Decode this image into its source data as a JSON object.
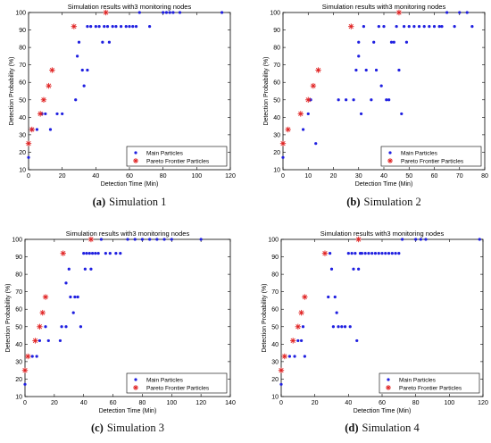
{
  "legend": {
    "main": "Main Particles",
    "pareto": "Pareto Frontier Particles"
  },
  "chart_data": [
    {
      "type": "scatter",
      "title": "Simulation results with3 monitoring nodes",
      "xlabel": "Detection Time (Min)",
      "ylabel": "Detection Probability (%)",
      "caption_label": "(a)",
      "caption_text": "Simulation 1",
      "xlim": [
        0,
        120
      ],
      "ylim": [
        10,
        100
      ],
      "xticks": [
        0,
        20,
        40,
        60,
        80,
        100,
        120
      ],
      "yticks": [
        10,
        20,
        30,
        40,
        50,
        60,
        70,
        80,
        90,
        100
      ],
      "grid": false,
      "legend_position": "bottom-right",
      "series": [
        {
          "name": "Main Particles",
          "marker": "dot",
          "color": "#1f1fe0",
          "points": [
            [
              0,
              17
            ],
            [
              2,
              33
            ],
            [
              5,
              33
            ],
            [
              8,
              42
            ],
            [
              10,
              42
            ],
            [
              13,
              33
            ],
            [
              17,
              42
            ],
            [
              20,
              42
            ],
            [
              28,
              50
            ],
            [
              29,
              75
            ],
            [
              30,
              83
            ],
            [
              32,
              67
            ],
            [
              33,
              58
            ],
            [
              35,
              92
            ],
            [
              35,
              67
            ],
            [
              37,
              92
            ],
            [
              40,
              92
            ],
            [
              42,
              92
            ],
            [
              44,
              83
            ],
            [
              45,
              92
            ],
            [
              47,
              92
            ],
            [
              48,
              83
            ],
            [
              50,
              92
            ],
            [
              52,
              92
            ],
            [
              55,
              92
            ],
            [
              58,
              92
            ],
            [
              60,
              92
            ],
            [
              62,
              92
            ],
            [
              64,
              92
            ],
            [
              66,
              100
            ],
            [
              72,
              92
            ],
            [
              80,
              100
            ],
            [
              82,
              100
            ],
            [
              84,
              100
            ],
            [
              86,
              100
            ],
            [
              90,
              100
            ],
            [
              115,
              100
            ]
          ]
        },
        {
          "name": "Pareto Frontier Particles",
          "marker": "asterisk",
          "color": "#e02020",
          "points": [
            [
              0,
              25
            ],
            [
              2,
              33
            ],
            [
              7,
              42
            ],
            [
              9,
              50
            ],
            [
              12,
              58
            ],
            [
              14,
              67
            ],
            [
              27,
              92
            ],
            [
              46,
              100
            ]
          ]
        }
      ]
    },
    {
      "type": "scatter",
      "title": "Simulation results with3 monitoring nodes",
      "xlabel": "Detection Time (Min)",
      "ylabel": "Detection Probability (%)",
      "caption_label": "(b)",
      "caption_text": "Simulation 2",
      "xlim": [
        0,
        80
      ],
      "ylim": [
        10,
        100
      ],
      "xticks": [
        0,
        10,
        20,
        30,
        40,
        50,
        60,
        70,
        80
      ],
      "yticks": [
        10,
        20,
        30,
        40,
        50,
        60,
        70,
        80,
        90,
        100
      ],
      "grid": false,
      "legend_position": "bottom-right",
      "series": [
        {
          "name": "Main Particles",
          "marker": "dot",
          "color": "#1f1fe0",
          "points": [
            [
              0,
              17
            ],
            [
              8,
              33
            ],
            [
              10,
              42
            ],
            [
              11,
              50
            ],
            [
              13,
              25
            ],
            [
              22,
              50
            ],
            [
              25,
              50
            ],
            [
              28,
              50
            ],
            [
              29,
              67
            ],
            [
              30,
              75
            ],
            [
              30,
              83
            ],
            [
              31,
              42
            ],
            [
              32,
              92
            ],
            [
              33,
              67
            ],
            [
              35,
              50
            ],
            [
              36,
              83
            ],
            [
              37,
              67
            ],
            [
              38,
              92
            ],
            [
              39,
              58
            ],
            [
              40,
              92
            ],
            [
              41,
              50
            ],
            [
              42,
              50
            ],
            [
              43,
              83
            ],
            [
              44,
              83
            ],
            [
              45,
              92
            ],
            [
              46,
              67
            ],
            [
              47,
              42
            ],
            [
              48,
              92
            ],
            [
              49,
              83
            ],
            [
              50,
              92
            ],
            [
              52,
              92
            ],
            [
              54,
              92
            ],
            [
              56,
              92
            ],
            [
              58,
              92
            ],
            [
              60,
              92
            ],
            [
              62,
              92
            ],
            [
              63,
              92
            ],
            [
              65,
              100
            ],
            [
              68,
              92
            ],
            [
              70,
              100
            ],
            [
              73,
              100
            ],
            [
              75,
              92
            ]
          ]
        },
        {
          "name": "Pareto Frontier Particles",
          "marker": "asterisk",
          "color": "#e02020",
          "points": [
            [
              0,
              25
            ],
            [
              2,
              33
            ],
            [
              7,
              42
            ],
            [
              10,
              50
            ],
            [
              12,
              58
            ],
            [
              14,
              67
            ],
            [
              27,
              92
            ],
            [
              46,
              100
            ]
          ]
        }
      ]
    },
    {
      "type": "scatter",
      "title": "Simulation results with3 monitoring nodes",
      "xlabel": "Detection Time (Min)",
      "ylabel": "Detection Probability (%)",
      "caption_label": "(c)",
      "caption_text": "Simulation 3",
      "xlim": [
        0,
        140
      ],
      "ylim": [
        10,
        100
      ],
      "xticks": [
        0,
        20,
        40,
        60,
        80,
        100,
        120,
        140
      ],
      "yticks": [
        10,
        20,
        30,
        40,
        50,
        60,
        70,
        80,
        90,
        100
      ],
      "grid": false,
      "legend_position": "bottom-right",
      "series": [
        {
          "name": "Main Particles",
          "marker": "dot",
          "color": "#1f1fe0",
          "points": [
            [
              0,
              17
            ],
            [
              5,
              33
            ],
            [
              8,
              33
            ],
            [
              10,
              42
            ],
            [
              14,
              50
            ],
            [
              16,
              42
            ],
            [
              24,
              42
            ],
            [
              25,
              50
            ],
            [
              28,
              50
            ],
            [
              28,
              75
            ],
            [
              30,
              83
            ],
            [
              31,
              67
            ],
            [
              33,
              58
            ],
            [
              34,
              67
            ],
            [
              36,
              67
            ],
            [
              38,
              50
            ],
            [
              40,
              92
            ],
            [
              41,
              83
            ],
            [
              42,
              92
            ],
            [
              44,
              92
            ],
            [
              45,
              83
            ],
            [
              46,
              92
            ],
            [
              48,
              92
            ],
            [
              50,
              92
            ],
            [
              52,
              100
            ],
            [
              55,
              92
            ],
            [
              58,
              92
            ],
            [
              62,
              92
            ],
            [
              65,
              92
            ],
            [
              70,
              100
            ],
            [
              75,
              100
            ],
            [
              80,
              100
            ],
            [
              85,
              100
            ],
            [
              90,
              100
            ],
            [
              95,
              100
            ],
            [
              100,
              100
            ],
            [
              120,
              100
            ]
          ]
        },
        {
          "name": "Pareto Frontier Particles",
          "marker": "asterisk",
          "color": "#e02020",
          "points": [
            [
              0,
              25
            ],
            [
              2,
              33
            ],
            [
              7,
              42
            ],
            [
              10,
              50
            ],
            [
              12,
              58
            ],
            [
              14,
              67
            ],
            [
              26,
              92
            ],
            [
              45,
              100
            ]
          ]
        }
      ]
    },
    {
      "type": "scatter",
      "title": "Simulation results with3 monitoring nodes",
      "xlabel": "Detection Time (Min)",
      "ylabel": "Detection Probability (%)",
      "caption_label": "(d)",
      "caption_text": "Simulation 4",
      "xlim": [
        0,
        120
      ],
      "ylim": [
        10,
        100
      ],
      "xticks": [
        0,
        20,
        40,
        60,
        80,
        100,
        120
      ],
      "yticks": [
        10,
        20,
        30,
        40,
        50,
        60,
        70,
        80,
        90,
        100
      ],
      "grid": false,
      "legend_position": "bottom-right",
      "series": [
        {
          "name": "Main Particles",
          "marker": "dot",
          "color": "#1f1fe0",
          "points": [
            [
              0,
              17
            ],
            [
              5,
              33
            ],
            [
              8,
              33
            ],
            [
              10,
              42
            ],
            [
              12,
              42
            ],
            [
              13,
              50
            ],
            [
              14,
              33
            ],
            [
              28,
              67
            ],
            [
              29,
              92
            ],
            [
              30,
              83
            ],
            [
              31,
              50
            ],
            [
              32,
              67
            ],
            [
              33,
              58
            ],
            [
              34,
              50
            ],
            [
              36,
              50
            ],
            [
              38,
              50
            ],
            [
              40,
              92
            ],
            [
              41,
              50
            ],
            [
              42,
              92
            ],
            [
              43,
              83
            ],
            [
              44,
              92
            ],
            [
              45,
              42
            ],
            [
              46,
              83
            ],
            [
              47,
              92
            ],
            [
              48,
              92
            ],
            [
              50,
              92
            ],
            [
              52,
              92
            ],
            [
              54,
              92
            ],
            [
              56,
              92
            ],
            [
              58,
              92
            ],
            [
              60,
              92
            ],
            [
              62,
              92
            ],
            [
              64,
              92
            ],
            [
              66,
              92
            ],
            [
              68,
              92
            ],
            [
              70,
              92
            ],
            [
              72,
              100
            ],
            [
              80,
              100
            ],
            [
              83,
              100
            ],
            [
              86,
              100
            ],
            [
              118,
              100
            ]
          ]
        },
        {
          "name": "Pareto Frontier Particles",
          "marker": "asterisk",
          "color": "#e02020",
          "points": [
            [
              0,
              25
            ],
            [
              2,
              33
            ],
            [
              7,
              42
            ],
            [
              10,
              50
            ],
            [
              12,
              58
            ],
            [
              14,
              67
            ],
            [
              26,
              92
            ],
            [
              46,
              100
            ]
          ]
        }
      ]
    }
  ]
}
